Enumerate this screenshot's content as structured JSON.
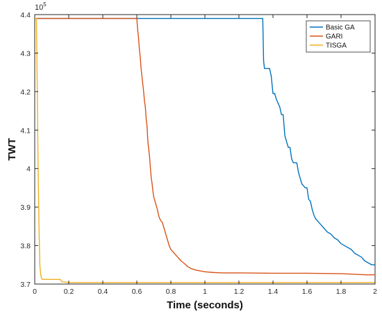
{
  "chart_data": {
    "type": "line",
    "xlabel": "Time (seconds)",
    "ylabel": "TWT",
    "y_exponent": {
      "base": "10",
      "power": "5"
    },
    "xlim": [
      0,
      2
    ],
    "ylim": [
      3.7,
      4.4
    ],
    "y_unit_multiplier": 100000,
    "x_ticks": [
      0,
      0.2,
      0.4,
      0.6,
      0.8,
      1,
      1.2,
      1.4,
      1.6,
      1.8,
      2
    ],
    "x_tick_labels": [
      "0",
      "0.2",
      "0.4",
      "0.6",
      "0.8",
      "1",
      "1.2",
      "1.4",
      "1.6",
      "1.8",
      "2"
    ],
    "y_ticks": [
      3.7,
      3.8,
      3.9,
      4.0,
      4.1,
      4.2,
      4.3,
      4.4
    ],
    "y_tick_labels": [
      "3.7",
      "3.8",
      "3.9",
      "4",
      "4.1",
      "4.2",
      "4.3",
      "4.4"
    ],
    "grid": false,
    "legend_position": "top-right",
    "series": [
      {
        "name": "Basic GA",
        "color": "#0072BD",
        "x": [
          0,
          1.34,
          1.345,
          1.35,
          1.36,
          1.37,
          1.38,
          1.39,
          1.4,
          1.41,
          1.42,
          1.43,
          1.44,
          1.45,
          1.46,
          1.47,
          1.48,
          1.49,
          1.5,
          1.51,
          1.52,
          1.53,
          1.54,
          1.55,
          1.56,
          1.57,
          1.58,
          1.59,
          1.6,
          1.61,
          1.62,
          1.63,
          1.64,
          1.65,
          1.66,
          1.67,
          1.68,
          1.7,
          1.72,
          1.74,
          1.76,
          1.78,
          1.8,
          1.82,
          1.84,
          1.86,
          1.88,
          1.9,
          1.92,
          1.94,
          1.96,
          1.98,
          2.0
        ],
        "values": [
          4.39,
          4.39,
          4.28,
          4.26,
          4.26,
          4.26,
          4.26,
          4.24,
          4.195,
          4.195,
          4.18,
          4.17,
          4.16,
          4.14,
          4.14,
          4.085,
          4.07,
          4.055,
          4.055,
          4.025,
          4.015,
          4.015,
          4.015,
          3.99,
          3.975,
          3.96,
          3.955,
          3.95,
          3.95,
          3.92,
          3.915,
          3.895,
          3.88,
          3.87,
          3.865,
          3.86,
          3.855,
          3.845,
          3.835,
          3.83,
          3.82,
          3.815,
          3.805,
          3.8,
          3.795,
          3.79,
          3.78,
          3.775,
          3.77,
          3.76,
          3.755,
          3.75,
          3.75
        ]
      },
      {
        "name": "GARI",
        "color": "#D95319",
        "x": [
          0,
          0.6,
          0.605,
          0.61,
          0.615,
          0.62,
          0.625,
          0.63,
          0.635,
          0.64,
          0.645,
          0.65,
          0.655,
          0.66,
          0.665,
          0.67,
          0.675,
          0.68,
          0.685,
          0.69,
          0.695,
          0.7,
          0.71,
          0.72,
          0.73,
          0.74,
          0.75,
          0.76,
          0.77,
          0.78,
          0.79,
          0.8,
          0.82,
          0.84,
          0.86,
          0.88,
          0.9,
          0.92,
          0.95,
          1.0,
          1.05,
          1.1,
          1.2,
          1.4,
          1.6,
          1.8,
          1.9,
          1.95,
          2.0
        ],
        "values": [
          4.39,
          4.39,
          4.36,
          4.34,
          4.31,
          4.29,
          4.26,
          4.24,
          4.22,
          4.2,
          4.175,
          4.16,
          4.13,
          4.11,
          4.07,
          4.05,
          4.03,
          4.0,
          3.975,
          3.96,
          3.94,
          3.925,
          3.91,
          3.895,
          3.875,
          3.865,
          3.86,
          3.845,
          3.83,
          3.815,
          3.8,
          3.79,
          3.78,
          3.77,
          3.76,
          3.753,
          3.745,
          3.74,
          3.736,
          3.732,
          3.73,
          3.729,
          3.729,
          3.728,
          3.728,
          3.727,
          3.725,
          3.724,
          3.724
        ]
      },
      {
        "name": "TISGA",
        "color": "#EDB120",
        "x": [
          0,
          0.01,
          0.015,
          0.02,
          0.025,
          0.03,
          0.035,
          0.04,
          0.045,
          0.05,
          0.1,
          0.15,
          0.16,
          0.18,
          0.2,
          0.5,
          1.0,
          1.5,
          2.0
        ],
        "values": [
          4.39,
          4.39,
          4.2,
          4.0,
          3.85,
          3.75,
          3.725,
          3.715,
          3.712,
          3.712,
          3.712,
          3.712,
          3.706,
          3.705,
          3.704,
          3.704,
          3.704,
          3.704,
          3.704
        ]
      }
    ]
  }
}
